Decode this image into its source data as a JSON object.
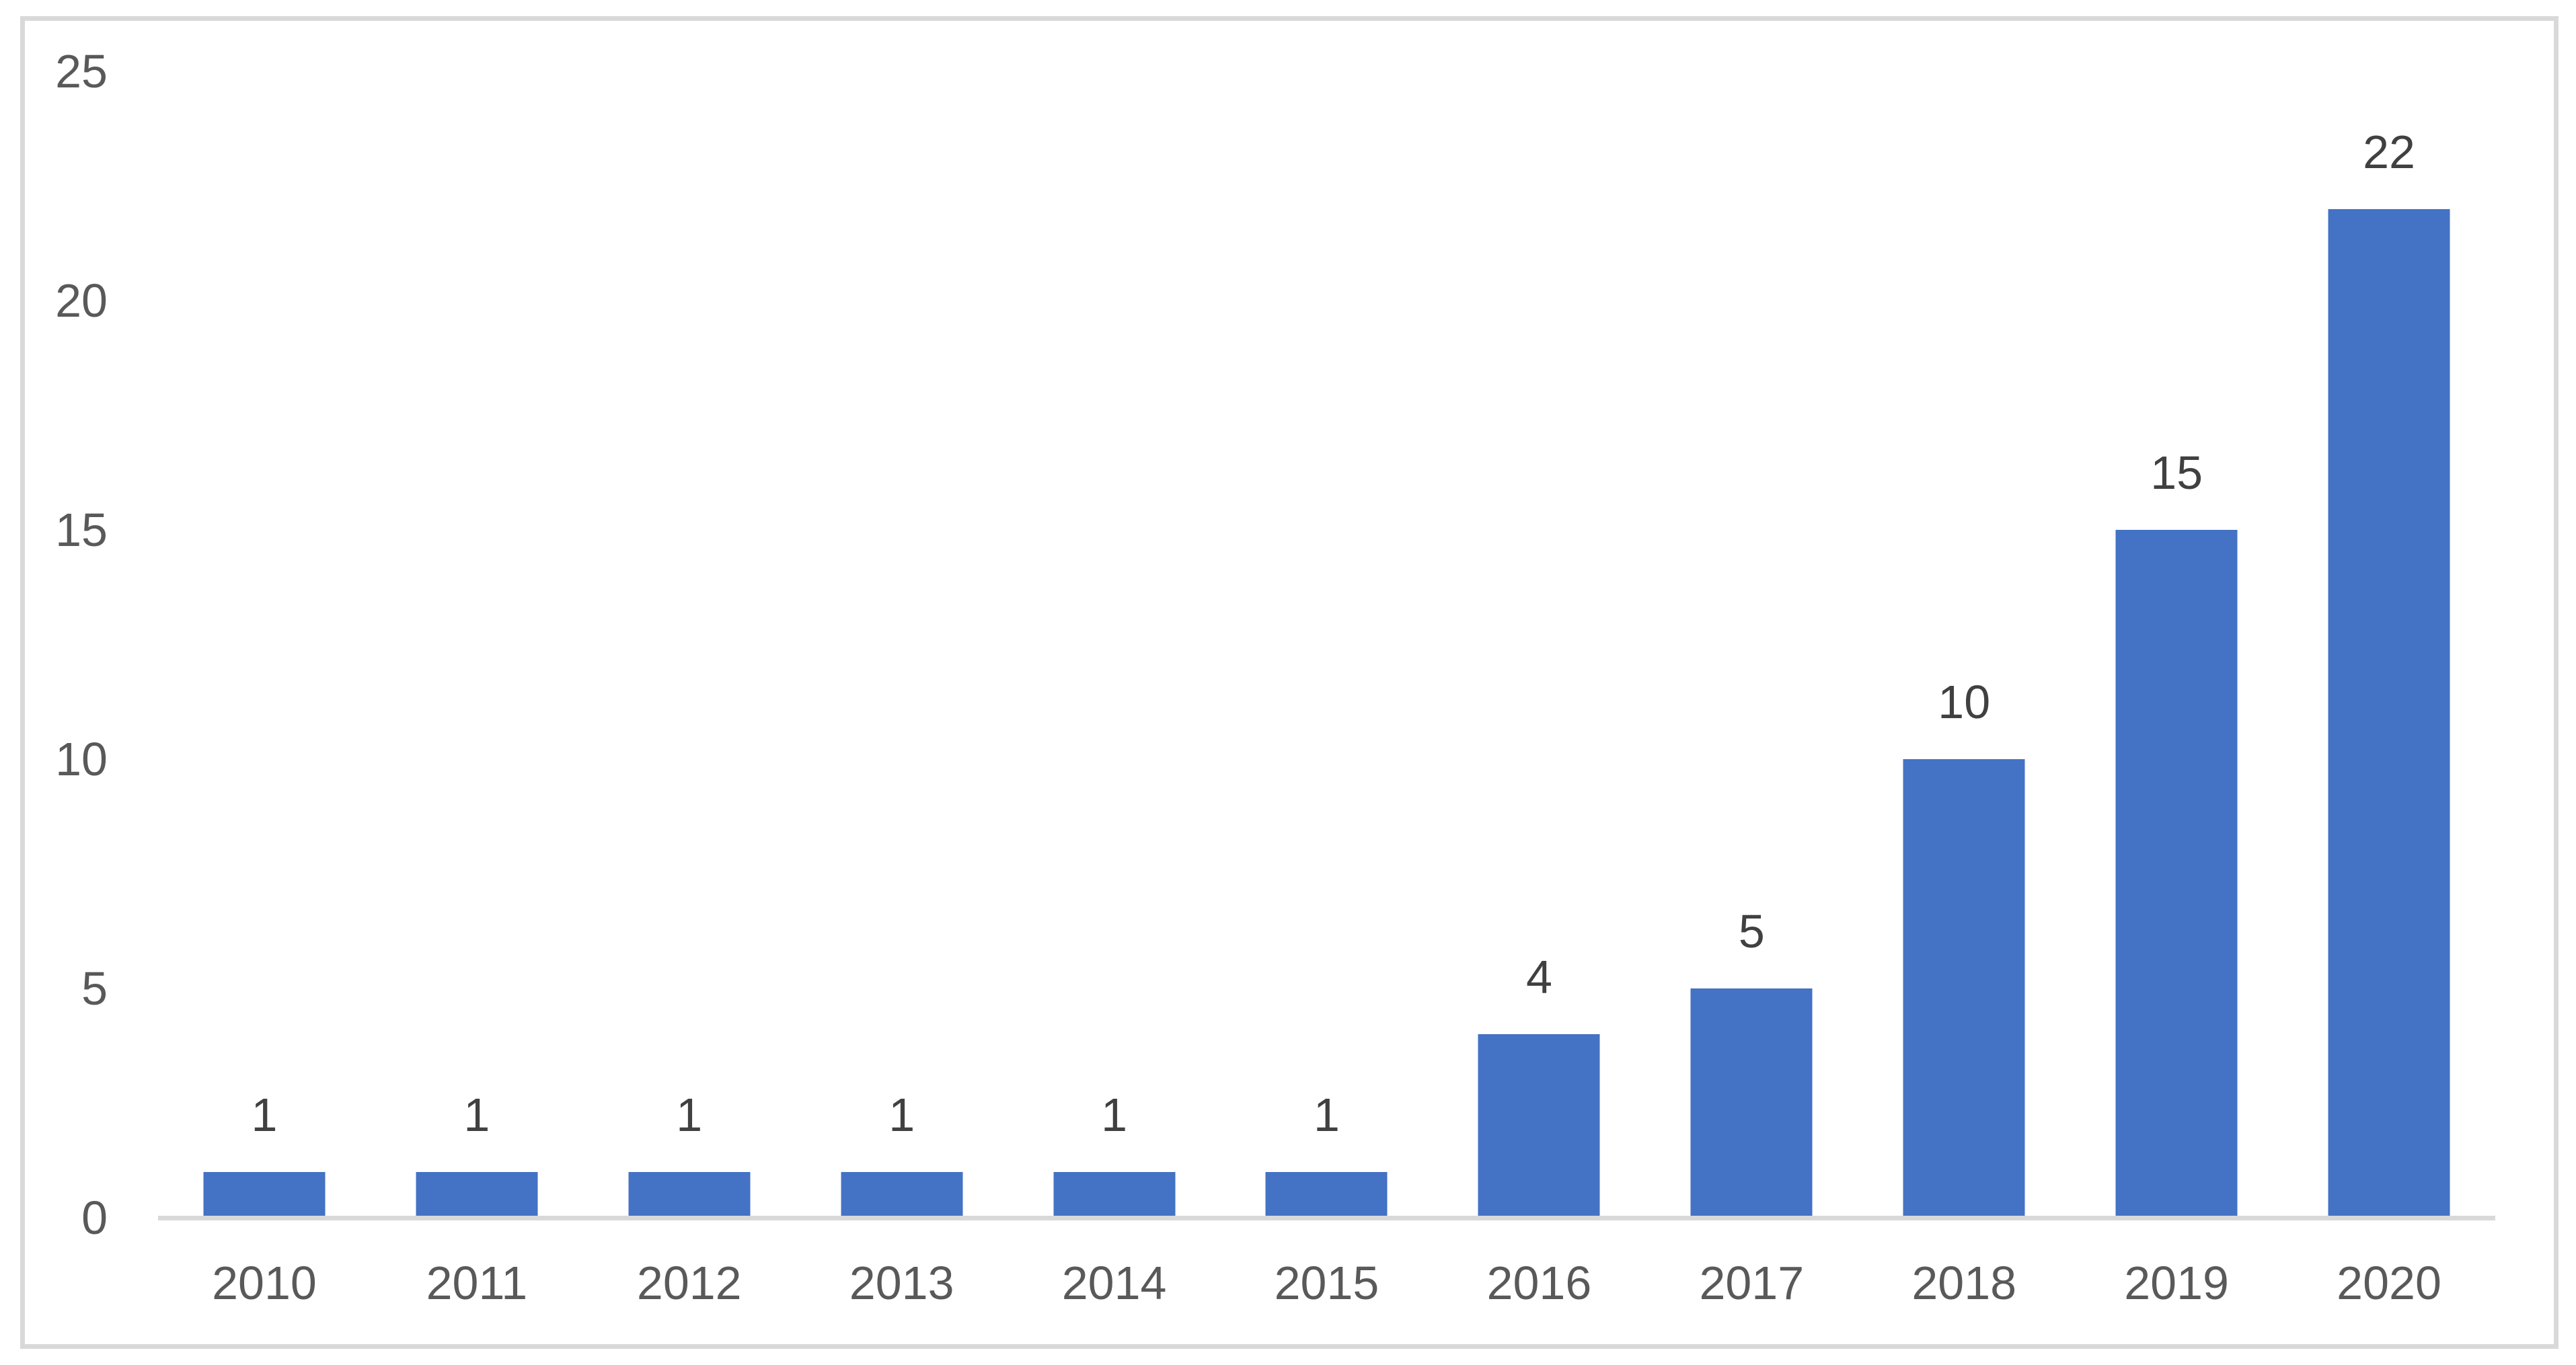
{
  "chart_data": {
    "type": "bar",
    "categories": [
      "2010",
      "2011",
      "2012",
      "2013",
      "2014",
      "2015",
      "2016",
      "2017",
      "2018",
      "2019",
      "2020"
    ],
    "values": [
      1,
      1,
      1,
      1,
      1,
      1,
      4,
      5,
      10,
      15,
      22
    ],
    "data_labels": [
      "1",
      "1",
      "1",
      "1",
      "1",
      "1",
      "4",
      "5",
      "10",
      "15",
      "22"
    ],
    "title": "",
    "xlabel": "",
    "ylabel": "",
    "ylim": [
      0,
      25
    ],
    "yticks": [
      0,
      5,
      10,
      15,
      20,
      25
    ],
    "ytick_labels": [
      "0",
      "5",
      "10",
      "15",
      "20",
      "25"
    ],
    "grid": false,
    "legend": false,
    "data_labels_shown": true,
    "colors": {
      "bar": "#4472C4",
      "axis_line": "#D9D9D9",
      "frame_border": "#D9D9D9",
      "tick_label": "#595959",
      "data_label": "#404040",
      "background": "#FFFFFF"
    }
  }
}
